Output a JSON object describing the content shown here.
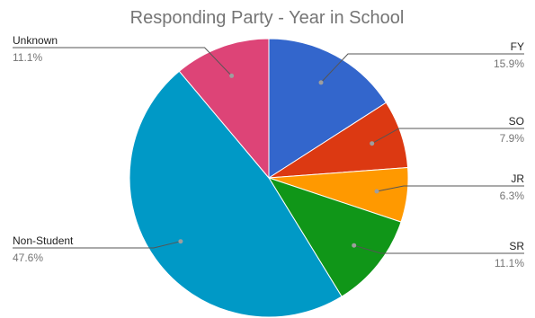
{
  "chart_data": {
    "type": "pie",
    "title": "Responding Party - Year in School",
    "slices": [
      {
        "label": "FY",
        "value": 15.9,
        "value_label": "15.9%",
        "color": "#3366cc"
      },
      {
        "label": "SO",
        "value": 7.9,
        "value_label": "7.9%",
        "color": "#dc3912"
      },
      {
        "label": "JR",
        "value": 6.3,
        "value_label": "6.3%",
        "color": "#ff9900"
      },
      {
        "label": "SR",
        "value": 11.1,
        "value_label": "11.1%",
        "color": "#109618"
      },
      {
        "label": "Non-Student",
        "value": 47.6,
        "value_label": "47.6%",
        "color": "#0099c6"
      },
      {
        "label": "Unknown",
        "value": 11.1,
        "value_label": "11.1%",
        "color": "#dd4477"
      }
    ],
    "start_angle": "12 o'clock",
    "direction": "clockwise",
    "legend": "labeled leader lines"
  }
}
